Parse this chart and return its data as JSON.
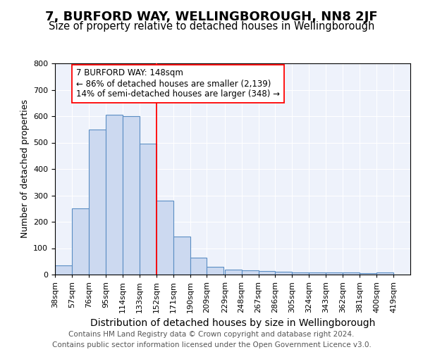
{
  "title": "7, BURFORD WAY, WELLINGBOROUGH, NN8 2JF",
  "subtitle": "Size of property relative to detached houses in Wellingborough",
  "xlabel": "Distribution of detached houses by size in Wellingborough",
  "ylabel": "Number of detached properties",
  "bin_labels": [
    "38sqm",
    "57sqm",
    "76sqm",
    "95sqm",
    "114sqm",
    "133sqm",
    "152sqm",
    "171sqm",
    "190sqm",
    "209sqm",
    "229sqm",
    "248sqm",
    "267sqm",
    "286sqm",
    "305sqm",
    "324sqm",
    "343sqm",
    "362sqm",
    "381sqm",
    "400sqm",
    "419sqm"
  ],
  "bin_edges": [
    38,
    57,
    76,
    95,
    114,
    133,
    152,
    171,
    190,
    209,
    229,
    248,
    267,
    286,
    305,
    324,
    343,
    362,
    381,
    400,
    419
  ],
  "bar_heights": [
    35,
    250,
    550,
    605,
    600,
    495,
    280,
    145,
    65,
    30,
    20,
    15,
    13,
    10,
    8,
    8,
    8,
    8,
    5,
    8
  ],
  "bar_color": "#ccd9f0",
  "bar_edge_color": "#5b8ec4",
  "redline_x": 152,
  "annotation_lines": [
    "7 BURFORD WAY: 148sqm",
    "← 86% of detached houses are smaller (2,139)",
    "14% of semi-detached houses are larger (348) →"
  ],
  "ylim": [
    0,
    800
  ],
  "xlim_min": 38,
  "xlim_max": 438,
  "background_color": "#eef2fb",
  "grid_color": "#ffffff",
  "footer": "Contains HM Land Registry data © Crown copyright and database right 2024.\nContains public sector information licensed under the Open Government Licence v3.0.",
  "title_fontsize": 13,
  "subtitle_fontsize": 10.5,
  "xlabel_fontsize": 10,
  "ylabel_fontsize": 9,
  "tick_fontsize": 8,
  "annotation_fontsize": 8.5,
  "footer_fontsize": 7.5
}
